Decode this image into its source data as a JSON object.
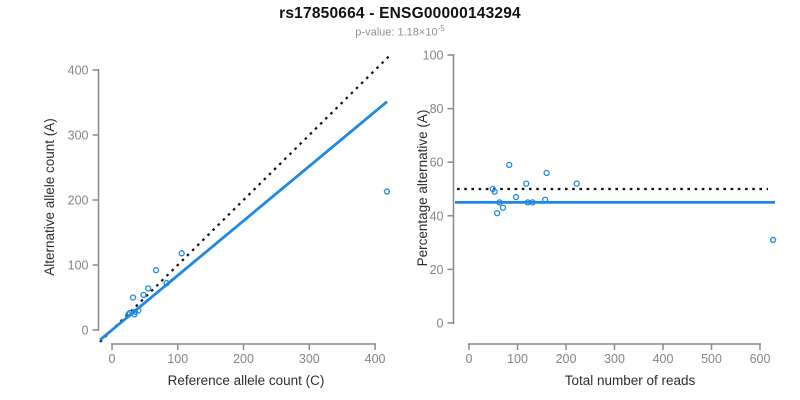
{
  "header": {
    "title": "rs17850664 - ENSG00000143294",
    "pvalue_prefix": "p-value: 1.18×10",
    "pvalue_exponent": "-5"
  },
  "colors": {
    "accent_blue": "#1E88E5",
    "dotted_line": "#111111",
    "axis_line": "#8A8A8A",
    "tick_text": "#858585",
    "axis_title_text": "#2E2E2E"
  },
  "chart_data": [
    {
      "type": "scatter",
      "name": "allele-count-scatter",
      "xlabel": "Reference allele count (C)",
      "ylabel": "Alternative allele count (A)",
      "xlim": [
        0,
        400
      ],
      "ylim": [
        0,
        400
      ],
      "xticks": [
        0,
        100,
        200,
        300,
        400
      ],
      "yticks": [
        0,
        100,
        200,
        300,
        400
      ],
      "points": [
        [
          25,
          24
        ],
        [
          27,
          26
        ],
        [
          34,
          24
        ],
        [
          35,
          28
        ],
        [
          40,
          30
        ],
        [
          32,
          50
        ],
        [
          48,
          54
        ],
        [
          55,
          64
        ],
        [
          67,
          92
        ],
        [
          83,
          72
        ],
        [
          106,
          118
        ],
        [
          418,
          213
        ]
      ],
      "lines": [
        {
          "name": "expected-line",
          "style": "dotted",
          "slope": 1,
          "intercept": 0
        },
        {
          "name": "fitted-line",
          "style": "solid",
          "slope": 0.84,
          "intercept": 0
        }
      ]
    },
    {
      "type": "scatter",
      "name": "percentage-scatter",
      "xlabel": "Total number of reads",
      "ylabel": "Percentage alternative (A)",
      "xlim": [
        0,
        600
      ],
      "ylim": [
        0,
        100
      ],
      "xticks": [
        0,
        100,
        200,
        300,
        400,
        500,
        600
      ],
      "yticks": [
        0,
        20,
        40,
        60,
        80,
        100
      ],
      "points": [
        [
          49,
          50
        ],
        [
          53,
          49
        ],
        [
          58,
          41
        ],
        [
          63,
          45
        ],
        [
          70,
          43
        ],
        [
          83,
          59
        ],
        [
          97,
          47
        ],
        [
          118,
          52
        ],
        [
          121,
          45
        ],
        [
          131,
          45
        ],
        [
          157,
          46
        ],
        [
          160,
          56
        ],
        [
          222,
          52
        ],
        [
          627,
          31
        ]
      ],
      "lines": [
        {
          "name": "expected-line",
          "style": "dotted",
          "slope": 0,
          "intercept": 50
        },
        {
          "name": "fitted-line",
          "style": "solid",
          "slope": 0,
          "intercept": 45
        }
      ]
    }
  ]
}
